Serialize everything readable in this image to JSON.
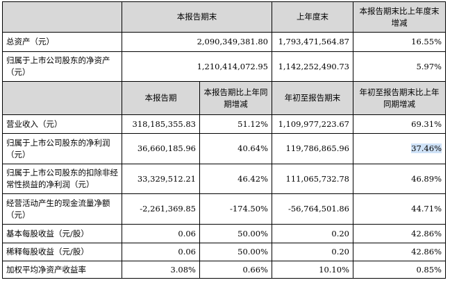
{
  "section1": {
    "headers": [
      "",
      "本报告期末",
      "上年度末",
      "本报告期末比上年度末增减"
    ],
    "rows": [
      {
        "label": "总资产（元）",
        "current_end": "2,090,349,381.80",
        "prior_year_end": "1,793,471,564.87",
        "change": "16.55%"
      },
      {
        "label": "归属于上市公司股东的净资产（元）",
        "current_end": "1,210,414,072.95",
        "prior_year_end": "1,142,252,490.73",
        "change": "5.97%"
      }
    ]
  },
  "section2": {
    "headers": [
      "",
      "本报告期",
      "本报告期比上年同期增减",
      "年初至报告期末",
      "年初至报告期末比上年同期增减"
    ],
    "rows": [
      {
        "label": "营业收入（元）",
        "period": "318,185,355.83",
        "period_change": "51.12%",
        "ytd": "1,109,977,223.67",
        "ytd_change": "69.31%"
      },
      {
        "label": "归属于上市公司股东的净利润（元）",
        "period": "36,660,185.96",
        "period_change": "40.64%",
        "ytd": "119,786,865.96",
        "ytd_change": "37.46%"
      },
      {
        "label": "归属于上市公司股东的扣除非经常性损益的净利润（元）",
        "period": "33,329,512.21",
        "period_change": "46.42%",
        "ytd": "111,065,732.78",
        "ytd_change": "46.89%"
      },
      {
        "label": "经营活动产生的现金流量净额（元）",
        "period": "-2,261,369.85",
        "period_change": "-174.50%",
        "ytd": "-56,764,501.86",
        "ytd_change": "44.71%"
      },
      {
        "label": "基本每股收益（元/股）",
        "period": "0.06",
        "period_change": "50.00%",
        "ytd": "0.20",
        "ytd_change": "42.86%"
      },
      {
        "label": "稀释每股收益（元/股）",
        "period": "0.06",
        "period_change": "50.00%",
        "ytd": "0.20",
        "ytd_change": "42.86%"
      },
      {
        "label": "加权平均净资产收益率",
        "period": "3.08%",
        "period_change": "0.66%",
        "ytd": "10.10%",
        "ytd_change": "0.85%"
      }
    ]
  }
}
